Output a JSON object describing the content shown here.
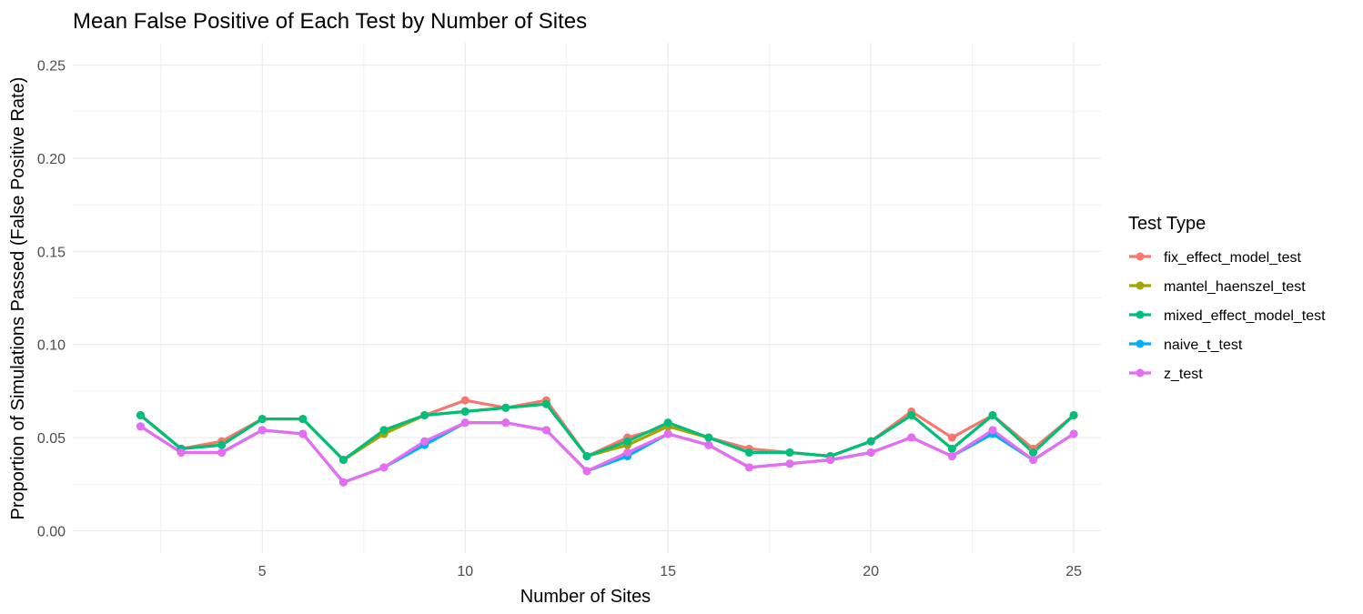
{
  "chart_data": {
    "type": "line",
    "title": "Mean False Positive of Each Test by Number of Sites",
    "xlabel": "Number of Sites",
    "ylabel": "Proportion of Simulations Passed (False Positive Rate)",
    "xlim": [
      0.33,
      25.67
    ],
    "ylim": [
      -0.012,
      0.262
    ],
    "x_ticks": [
      5,
      10,
      15,
      20,
      25
    ],
    "y_ticks": [
      0.0,
      0.05,
      0.1,
      0.15,
      0.2,
      0.25
    ],
    "y_tick_labels": [
      "0.00",
      "0.05",
      "0.10",
      "0.15",
      "0.20",
      "0.25"
    ],
    "grid": true,
    "legend_position": "right",
    "legend_title": "Test Type",
    "x": [
      2,
      3,
      4,
      5,
      6,
      7,
      8,
      9,
      10,
      11,
      12,
      13,
      14,
      15,
      16,
      17,
      18,
      19,
      20,
      21,
      22,
      23,
      24,
      25
    ],
    "series": [
      {
        "name": "fix_effect_model_test",
        "color": "#F8766D",
        "values": [
          0.062,
          0.044,
          0.048,
          0.06,
          0.06,
          0.038,
          0.054,
          0.062,
          0.07,
          0.066,
          0.07,
          0.04,
          0.05,
          0.056,
          0.05,
          0.044,
          0.042,
          0.04,
          0.048,
          0.064,
          0.05,
          0.062,
          0.044,
          0.062
        ]
      },
      {
        "name": "mantel_haenszel_test",
        "color": "#A3A500",
        "values": [
          0.062,
          0.044,
          0.046,
          0.06,
          0.06,
          0.038,
          0.052,
          0.062,
          0.064,
          0.066,
          0.068,
          0.04,
          0.046,
          0.056,
          0.05,
          0.042,
          0.042,
          0.04,
          0.048,
          0.062,
          0.044,
          0.062,
          0.042,
          0.062
        ]
      },
      {
        "name": "mixed_effect_model_test",
        "color": "#00BF7D",
        "values": [
          0.062,
          0.044,
          0.046,
          0.06,
          0.06,
          0.038,
          0.054,
          0.062,
          0.064,
          0.066,
          0.068,
          0.04,
          0.048,
          0.058,
          0.05,
          0.042,
          0.042,
          0.04,
          0.048,
          0.062,
          0.044,
          0.062,
          0.042,
          0.062
        ]
      },
      {
        "name": "naive_t_test",
        "color": "#00B0F6",
        "values": [
          0.056,
          0.042,
          0.042,
          0.054,
          0.052,
          0.026,
          0.034,
          0.046,
          0.058,
          0.058,
          0.054,
          0.032,
          0.04,
          0.052,
          0.046,
          0.034,
          0.036,
          0.038,
          0.042,
          0.05,
          0.04,
          0.052,
          0.038,
          0.052
        ]
      },
      {
        "name": "z_test",
        "color": "#E76BF3",
        "values": [
          0.056,
          0.042,
          0.042,
          0.054,
          0.052,
          0.026,
          0.034,
          0.048,
          0.058,
          0.058,
          0.054,
          0.032,
          0.042,
          0.052,
          0.046,
          0.034,
          0.036,
          0.038,
          0.042,
          0.05,
          0.04,
          0.054,
          0.038,
          0.052
        ]
      }
    ]
  }
}
